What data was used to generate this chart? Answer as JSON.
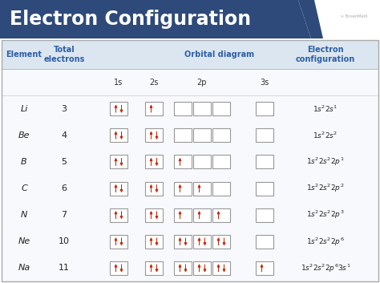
{
  "title": "Electron Configuration",
  "title_bg": "#2d4a7a",
  "title_text_color": "#ffffff",
  "header_bg": "#dce6f1",
  "outer_bg": "#ffffff",
  "header_text_color": "#2d5fa6",
  "elements": [
    "Li",
    "Be",
    "B",
    "C",
    "N",
    "Ne",
    "Na"
  ],
  "electrons": [
    3,
    4,
    5,
    6,
    7,
    10,
    11
  ],
  "orbital_fill": [
    {
      "1s": 2,
      "2s": 1,
      "2p": [
        0,
        0,
        0
      ],
      "3s": 0
    },
    {
      "1s": 2,
      "2s": 2,
      "2p": [
        0,
        0,
        0
      ],
      "3s": 0
    },
    {
      "1s": 2,
      "2s": 2,
      "2p": [
        1,
        0,
        0
      ],
      "3s": 0
    },
    {
      "1s": 2,
      "2s": 2,
      "2p": [
        1,
        1,
        0
      ],
      "3s": 0
    },
    {
      "1s": 2,
      "2s": 2,
      "2p": [
        1,
        1,
        1
      ],
      "3s": 0
    },
    {
      "1s": 2,
      "2s": 2,
      "2p": [
        2,
        2,
        2
      ],
      "3s": 0
    },
    {
      "1s": 2,
      "2s": 2,
      "2p": [
        2,
        2,
        2
      ],
      "3s": 1
    }
  ],
  "config_labels": [
    "1s²2s¹",
    "1s²2s²",
    "1s²2s²2p¹",
    "1s²2s²2p²",
    "1s²2s²2p³",
    "1s²2s²2p⁶",
    "1s²2s²2p⁶³s¹"
  ],
  "arrow_color": "#cc2200",
  "box_edge_color": "#999999",
  "body_bg": "#f8f9fc"
}
